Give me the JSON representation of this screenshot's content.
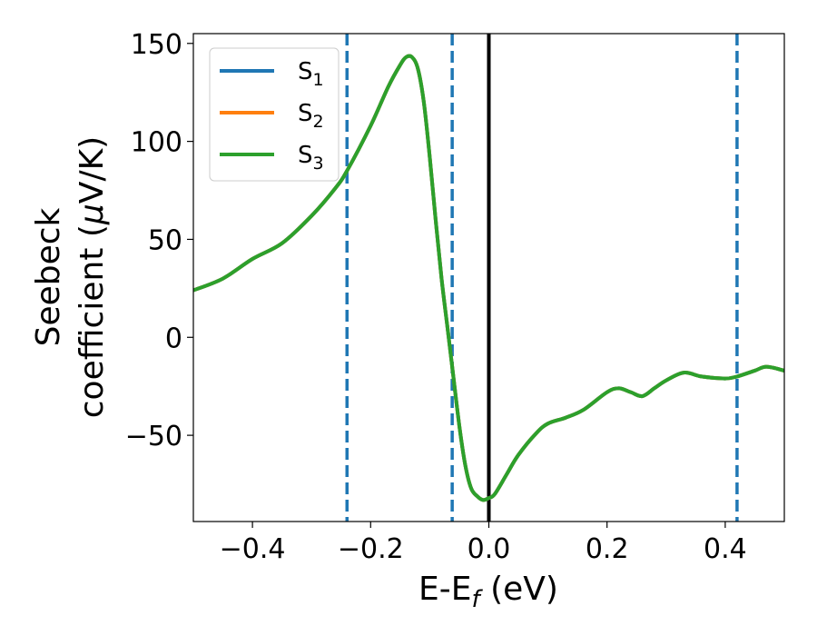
{
  "chart_data": {
    "type": "line",
    "xlabel": "E-E",
    "xlabel_sub": "f",
    "xlabel_unit": " (eV)",
    "ylabel_line1": "Seebeck",
    "ylabel_line2": "coefficient  (",
    "ylabel_mu": "μ",
    "ylabel_unit": "V/K)",
    "xlim": [
      -0.5,
      0.5
    ],
    "ylim": [
      -94,
      155
    ],
    "xticks": [
      -0.4,
      -0.2,
      0.0,
      0.2,
      0.4
    ],
    "xtick_labels": [
      "−0.4",
      "−0.2",
      "0.0",
      "0.2",
      "0.4"
    ],
    "yticks": [
      -50,
      0,
      50,
      100,
      150
    ],
    "ytick_labels": [
      "−50",
      "0",
      "50",
      "100",
      "150"
    ],
    "grid": false,
    "legend_position": "top-left",
    "vertical_lines": [
      {
        "x": -0.24,
        "style": "dashed",
        "color": "#1f77b4"
      },
      {
        "x": -0.062,
        "style": "dashed",
        "color": "#1f77b4"
      },
      {
        "x": 0.42,
        "style": "dashed",
        "color": "#1f77b4"
      },
      {
        "x": 0.0,
        "style": "solid",
        "color": "#000000"
      }
    ],
    "x": [
      -0.5,
      -0.45,
      -0.4,
      -0.35,
      -0.3,
      -0.26,
      -0.24,
      -0.2,
      -0.17,
      -0.15,
      -0.14,
      -0.13,
      -0.12,
      -0.11,
      -0.1,
      -0.09,
      -0.08,
      -0.07,
      -0.062,
      -0.05,
      -0.04,
      -0.03,
      -0.02,
      -0.01,
      0.0,
      0.01,
      0.03,
      0.05,
      0.08,
      0.1,
      0.13,
      0.16,
      0.2,
      0.22,
      0.24,
      0.26,
      0.28,
      0.3,
      0.33,
      0.36,
      0.4,
      0.42,
      0.45,
      0.47,
      0.5
    ],
    "series": [
      {
        "name": "S",
        "name_sub": "1",
        "color": "#1f77b4",
        "values": [
          24,
          30,
          40,
          48,
          62,
          76,
          85,
          108,
          128,
          139,
          143,
          143,
          137,
          120,
          92,
          60,
          30,
          5,
          -15,
          -45,
          -65,
          -77,
          -81,
          -83,
          -82,
          -80,
          -70,
          -60,
          -49,
          -44,
          -41,
          -37,
          -28,
          -26,
          -28,
          -30,
          -26,
          -22,
          -18,
          -20,
          -21,
          -20,
          -17,
          -15,
          -17
        ]
      },
      {
        "name": "S",
        "name_sub": "2",
        "color": "#ff7f0e",
        "values": [
          24,
          30,
          40,
          48,
          62,
          76,
          85,
          108,
          128,
          139,
          143,
          143,
          137,
          120,
          92,
          60,
          30,
          5,
          -15,
          -45,
          -65,
          -77,
          -81,
          -83,
          -82,
          -80,
          -70,
          -60,
          -49,
          -44,
          -41,
          -37,
          -28,
          -26,
          -28,
          -30,
          -26,
          -22,
          -18,
          -20,
          -21,
          -20,
          -17,
          -15,
          -17
        ]
      },
      {
        "name": "S",
        "name_sub": "3",
        "color": "#2ca02c",
        "values": [
          24,
          30,
          40,
          48,
          62,
          76,
          85,
          108,
          128,
          139,
          143,
          143,
          137,
          120,
          92,
          60,
          30,
          5,
          -15,
          -45,
          -65,
          -77,
          -81,
          -83,
          -82,
          -80,
          -70,
          -60,
          -49,
          -44,
          -41,
          -37,
          -28,
          -26,
          -28,
          -30,
          -26,
          -22,
          -18,
          -20,
          -21,
          -20,
          -17,
          -15,
          -17
        ]
      }
    ]
  }
}
